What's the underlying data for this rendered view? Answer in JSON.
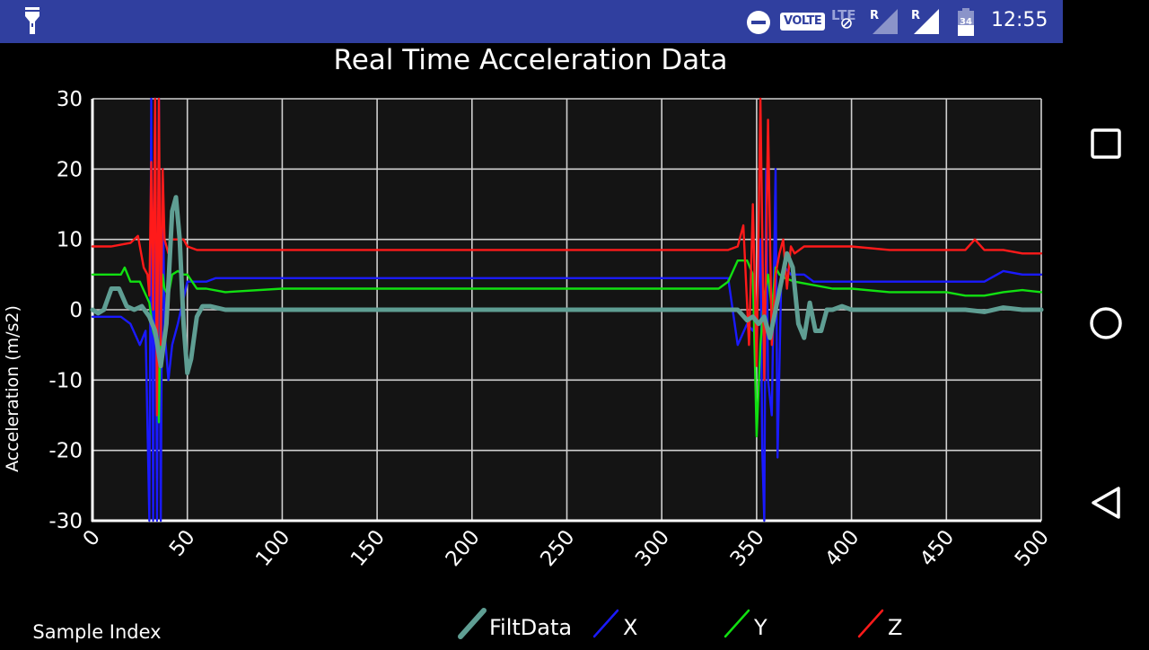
{
  "status_bar": {
    "volte": "VOLTE",
    "lte": "LTE",
    "roaming1": "R",
    "roaming2": "R",
    "battery_level": "34",
    "time": "12:55"
  },
  "navigation": {
    "recents_icon": "square-icon",
    "home_icon": "circle-icon",
    "back_icon": "triangle-back-icon"
  },
  "chart_data": {
    "type": "line",
    "title": "Real Time Acceleration Data",
    "xlabel": "Sample Index",
    "ylabel": "Acceleration (m/s2)",
    "xlim": [
      0,
      500
    ],
    "ylim": [
      -30,
      30
    ],
    "xticks": [
      0,
      50,
      100,
      150,
      200,
      250,
      300,
      350,
      400,
      450,
      500
    ],
    "yticks": [
      -30,
      -20,
      -10,
      0,
      10,
      20,
      30
    ],
    "grid": true,
    "legend_position": "bottom",
    "series": [
      {
        "name": "FiltData",
        "color": "#5f9e93",
        "x": [
          0,
          3,
          6,
          10,
          14,
          18,
          22,
          26,
          30,
          33,
          36,
          39,
          42,
          44,
          46,
          48,
          50,
          52,
          55,
          58,
          62,
          70,
          100,
          200,
          300,
          330,
          340,
          345,
          348,
          351,
          354,
          357,
          360,
          363,
          366,
          369,
          372,
          375,
          378,
          381,
          384,
          387,
          390,
          395,
          400,
          420,
          440,
          460,
          470,
          480,
          490,
          500
        ],
        "y": [
          0,
          -0.5,
          0,
          3,
          3,
          0.5,
          0,
          0.5,
          -1,
          -3,
          -8,
          -2,
          14,
          16,
          10,
          -2,
          -9,
          -7,
          -1,
          0.5,
          0.5,
          0,
          0,
          0,
          0,
          0,
          0,
          -1.5,
          -1,
          -2,
          -1,
          -4,
          0,
          4,
          8,
          6,
          -2,
          -4,
          1,
          -3,
          -3,
          0,
          0,
          0.5,
          0,
          0,
          0,
          0,
          -0.3,
          0.3,
          0,
          0
        ]
      },
      {
        "name": "X",
        "color": "#1a1aff",
        "x": [
          0,
          10,
          15,
          20,
          25,
          28,
          30,
          31,
          32,
          33,
          34,
          35,
          36,
          37,
          38,
          40,
          42,
          45,
          50,
          55,
          60,
          65,
          100,
          200,
          300,
          335,
          340,
          345,
          348,
          350,
          352,
          353,
          354,
          355,
          356,
          358,
          360,
          361,
          363,
          365,
          368,
          370,
          375,
          380,
          400,
          420,
          460,
          470,
          480,
          490,
          500
        ],
        "y": [
          -1,
          -1,
          -1,
          -2,
          -5,
          -3,
          -30,
          30,
          -30,
          30,
          -30,
          30,
          -30,
          20,
          -3,
          -10,
          -5,
          -2,
          4,
          4,
          4,
          4.5,
          4.5,
          4.5,
          4.5,
          4.5,
          -5,
          -2,
          -3,
          -1,
          10,
          -20,
          -30,
          20,
          -10,
          -15,
          20,
          -21,
          5,
          6,
          5,
          5,
          5,
          4,
          4,
          4,
          4,
          4,
          5.5,
          5,
          5
        ]
      },
      {
        "name": "Y",
        "color": "#11e011",
        "x": [
          0,
          10,
          15,
          17,
          20,
          25,
          30,
          32,
          34,
          35,
          36,
          37,
          38,
          40,
          42,
          45,
          48,
          50,
          55,
          60,
          70,
          100,
          200,
          300,
          330,
          335,
          340,
          345,
          348,
          350,
          352,
          354,
          356,
          358,
          360,
          362,
          365,
          370,
          380,
          390,
          400,
          420,
          450,
          460,
          470,
          480,
          490,
          500
        ],
        "y": [
          5,
          5,
          5,
          6,
          4,
          4,
          1,
          -3,
          -5,
          -16,
          0,
          5,
          3,
          2,
          5,
          5.5,
          5,
          5,
          3,
          3,
          2.5,
          3,
          3,
          3,
          3,
          4,
          7,
          7,
          5,
          -18,
          -5,
          2,
          5,
          0,
          6,
          5,
          4.5,
          4,
          3.5,
          3,
          3,
          2.5,
          2.5,
          2,
          2,
          2.5,
          2.8,
          2.5
        ]
      },
      {
        "name": "Z",
        "color": "#ff1a1a",
        "x": [
          0,
          10,
          20,
          24,
          27,
          29,
          30,
          31,
          32,
          33,
          34,
          35,
          36,
          37,
          38,
          40,
          42,
          45,
          48,
          50,
          55,
          60,
          100,
          200,
          300,
          330,
          335,
          340,
          343,
          346,
          348,
          350,
          352,
          354,
          356,
          358,
          360,
          362,
          364,
          366,
          368,
          370,
          375,
          380,
          400,
          420,
          450,
          460,
          465,
          470,
          480,
          490,
          500
        ],
        "y": [
          9,
          9,
          9.5,
          10.5,
          6,
          5,
          2,
          21,
          0,
          30,
          -15,
          30,
          -5,
          20,
          10,
          8,
          10,
          10,
          10,
          9,
          8.5,
          8.5,
          8.5,
          8.5,
          8.5,
          8.5,
          8.5,
          9,
          12,
          -5,
          15,
          -8,
          30,
          -10,
          27,
          -5,
          5,
          8,
          10,
          3,
          9,
          8,
          9,
          9,
          9,
          8.5,
          8.5,
          8.5,
          10,
          8.5,
          8.5,
          8,
          8
        ]
      }
    ]
  }
}
